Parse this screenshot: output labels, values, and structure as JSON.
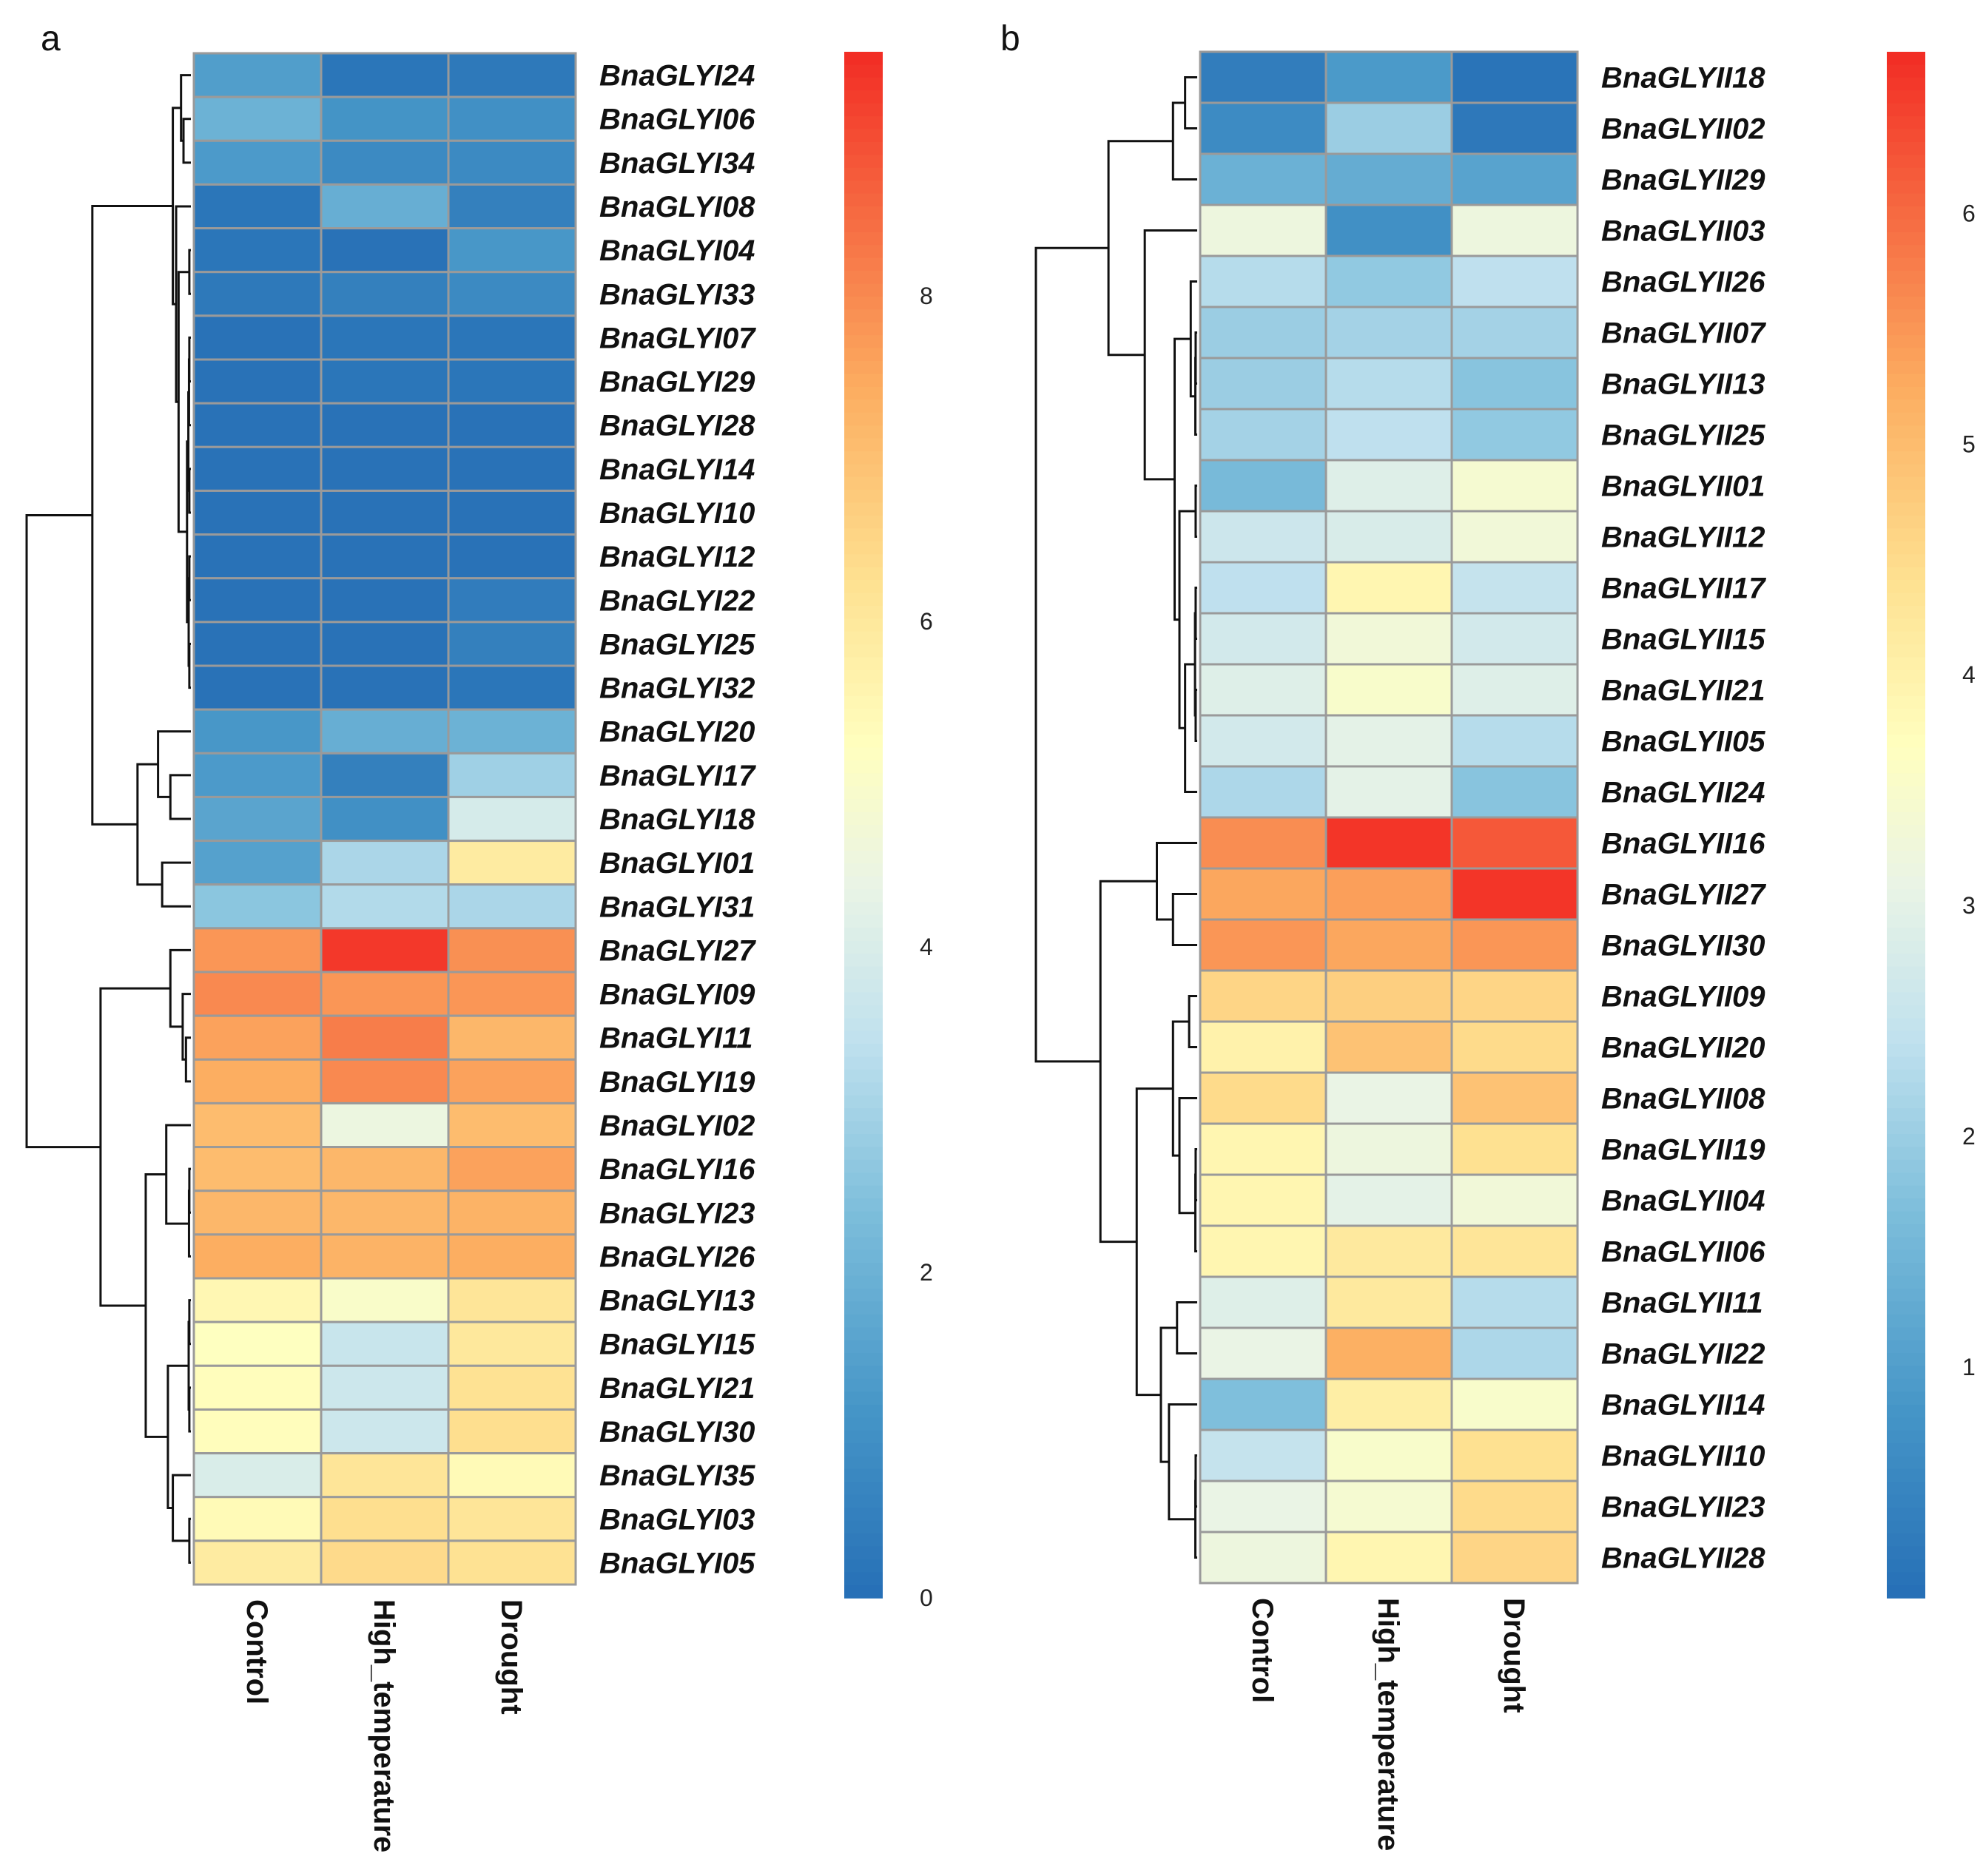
{
  "chart_data": [
    {
      "type": "heatmap",
      "panel": "a",
      "title": "",
      "columns": [
        "Control",
        "High_temperature",
        "Drought"
      ],
      "rows": [
        "BnaGLYI24",
        "BnaGLYI06",
        "BnaGLYI34",
        "BnaGLYI08",
        "BnaGLYI04",
        "BnaGLYI33",
        "BnaGLYI07",
        "BnaGLYI29",
        "BnaGLYI28",
        "BnaGLYI14",
        "BnaGLYI10",
        "BnaGLYI12",
        "BnaGLYI22",
        "BnaGLYI25",
        "BnaGLYI32",
        "BnaGLYI20",
        "BnaGLYI17",
        "BnaGLYI18",
        "BnaGLYI01",
        "BnaGLYI31",
        "BnaGLYI27",
        "BnaGLYI09",
        "BnaGLYI11",
        "BnaGLYI19",
        "BnaGLYI02",
        "BnaGLYI16",
        "BnaGLYI23",
        "BnaGLYI26",
        "BnaGLYI13",
        "BnaGLYI15",
        "BnaGLYI21",
        "BnaGLYI30",
        "BnaGLYI35",
        "BnaGLYI03",
        "BnaGLYI05"
      ],
      "values": [
        [
          1.4,
          0.2,
          0.3
        ],
        [
          2.0,
          1.1,
          1.0
        ],
        [
          1.3,
          0.8,
          0.8
        ],
        [
          0.2,
          1.9,
          0.5
        ],
        [
          0.2,
          0.1,
          1.2
        ],
        [
          0.3,
          0.5,
          0.8
        ],
        [
          0.1,
          0.2,
          0.2
        ],
        [
          0.1,
          0.2,
          0.2
        ],
        [
          0.1,
          0.1,
          0.1
        ],
        [
          0.1,
          0.1,
          0.1
        ],
        [
          0.1,
          0.1,
          0.1
        ],
        [
          0.1,
          0.1,
          0.1
        ],
        [
          0.1,
          0.1,
          0.4
        ],
        [
          0.1,
          0.1,
          0.5
        ],
        [
          0.1,
          0.1,
          0.2
        ],
        [
          1.2,
          1.9,
          2.0
        ],
        [
          1.3,
          0.5,
          2.9
        ],
        [
          1.6,
          1.0,
          3.9
        ],
        [
          1.5,
          3.1,
          5.9
        ],
        [
          2.6,
          3.2,
          3.1
        ],
        [
          7.8,
          9.3,
          7.9
        ],
        [
          8.0,
          7.8,
          7.8
        ],
        [
          7.6,
          8.2,
          7.2
        ],
        [
          7.4,
          8.0,
          7.6
        ],
        [
          7.1,
          4.5,
          7.1
        ],
        [
          7.1,
          7.2,
          7.6
        ],
        [
          7.2,
          7.2,
          7.3
        ],
        [
          7.4,
          7.3,
          7.4
        ],
        [
          5.5,
          5.0,
          6.1
        ],
        [
          5.2,
          3.6,
          6.0
        ],
        [
          5.3,
          3.7,
          6.2
        ],
        [
          5.3,
          3.7,
          6.3
        ],
        [
          4.0,
          6.1,
          5.4
        ],
        [
          5.4,
          6.3,
          6.1
        ],
        [
          5.9,
          6.4,
          6.2
        ]
      ],
      "colorbar": {
        "min": 0,
        "max": 9.5,
        "ticks": [
          0,
          2,
          4,
          6,
          8
        ]
      },
      "dendrogram": {
        "node_x": [
          [
            0,
            2
          ],
          [
            0,
            9.12
          ],
          [
            0,
            4.1
          ],
          [
            0,
            0
          ],
          [
            0,
            5.8
          ],
          [
            0,
            11
          ],
          [
            0,
            36
          ]
        ]
      }
    },
    {
      "type": "heatmap",
      "panel": "b",
      "title": "",
      "columns": [
        "Control",
        "High_temperature",
        "Drought"
      ],
      "rows": [
        "BnaGLYII18",
        "BnaGLYII02",
        "BnaGLYII29",
        "BnaGLYII03",
        "BnaGLYII26",
        "BnaGLYII07",
        "BnaGLYII13",
        "BnaGLYII25",
        "BnaGLYII01",
        "BnaGLYII12",
        "BnaGLYII17",
        "BnaGLYII15",
        "BnaGLYII21",
        "BnaGLYII05",
        "BnaGLYII24",
        "BnaGLYII16",
        "BnaGLYII27",
        "BnaGLYII30",
        "BnaGLYII09",
        "BnaGLYII20",
        "BnaGLYII08",
        "BnaGLYII19",
        "BnaGLYII04",
        "BnaGLYII06",
        "BnaGLYII11",
        "BnaGLYII22",
        "BnaGLYII14",
        "BnaGLYII10",
        "BnaGLYII23",
        "BnaGLYII28"
      ],
      "values": [
        [
          0.3,
          0.9,
          0.1
        ],
        [
          0.6,
          2.0,
          0.2
        ],
        [
          1.4,
          1.3,
          1.1
        ],
        [
          3.2,
          0.7,
          3.2
        ],
        [
          2.3,
          1.9,
          2.4
        ],
        [
          2.0,
          2.1,
          2.1
        ],
        [
          2.0,
          2.3,
          1.8
        ],
        [
          2.1,
          2.4,
          1.9
        ],
        [
          1.6,
          2.9,
          3.4
        ],
        [
          2.6,
          2.8,
          3.3
        ],
        [
          2.4,
          3.9,
          2.5
        ],
        [
          2.7,
          3.3,
          2.7
        ],
        [
          2.9,
          3.5,
          2.9
        ],
        [
          2.7,
          3.0,
          2.3
        ],
        [
          2.2,
          3.0,
          1.8
        ],
        [
          5.6,
          6.6,
          6.2
        ],
        [
          5.3,
          5.4,
          6.6
        ],
        [
          5.5,
          5.3,
          5.5
        ],
        [
          4.6,
          4.7,
          4.6
        ],
        [
          4.0,
          4.9,
          4.5
        ],
        [
          4.5,
          3.1,
          4.9
        ],
        [
          3.9,
          3.2,
          4.4
        ],
        [
          3.9,
          3.0,
          3.3
        ],
        [
          3.9,
          4.2,
          4.3
        ],
        [
          2.9,
          4.2,
          2.3
        ],
        [
          3.1,
          5.2,
          2.2
        ],
        [
          1.7,
          4.1,
          3.5
        ],
        [
          2.5,
          3.5,
          4.4
        ],
        [
          3.1,
          3.4,
          4.5
        ],
        [
          3.2,
          3.9,
          4.6
        ]
      ],
      "colorbar": {
        "min": 0,
        "max": 6.7,
        "ticks": [
          1,
          2,
          3,
          4,
          5,
          6
        ]
      }
    }
  ]
}
